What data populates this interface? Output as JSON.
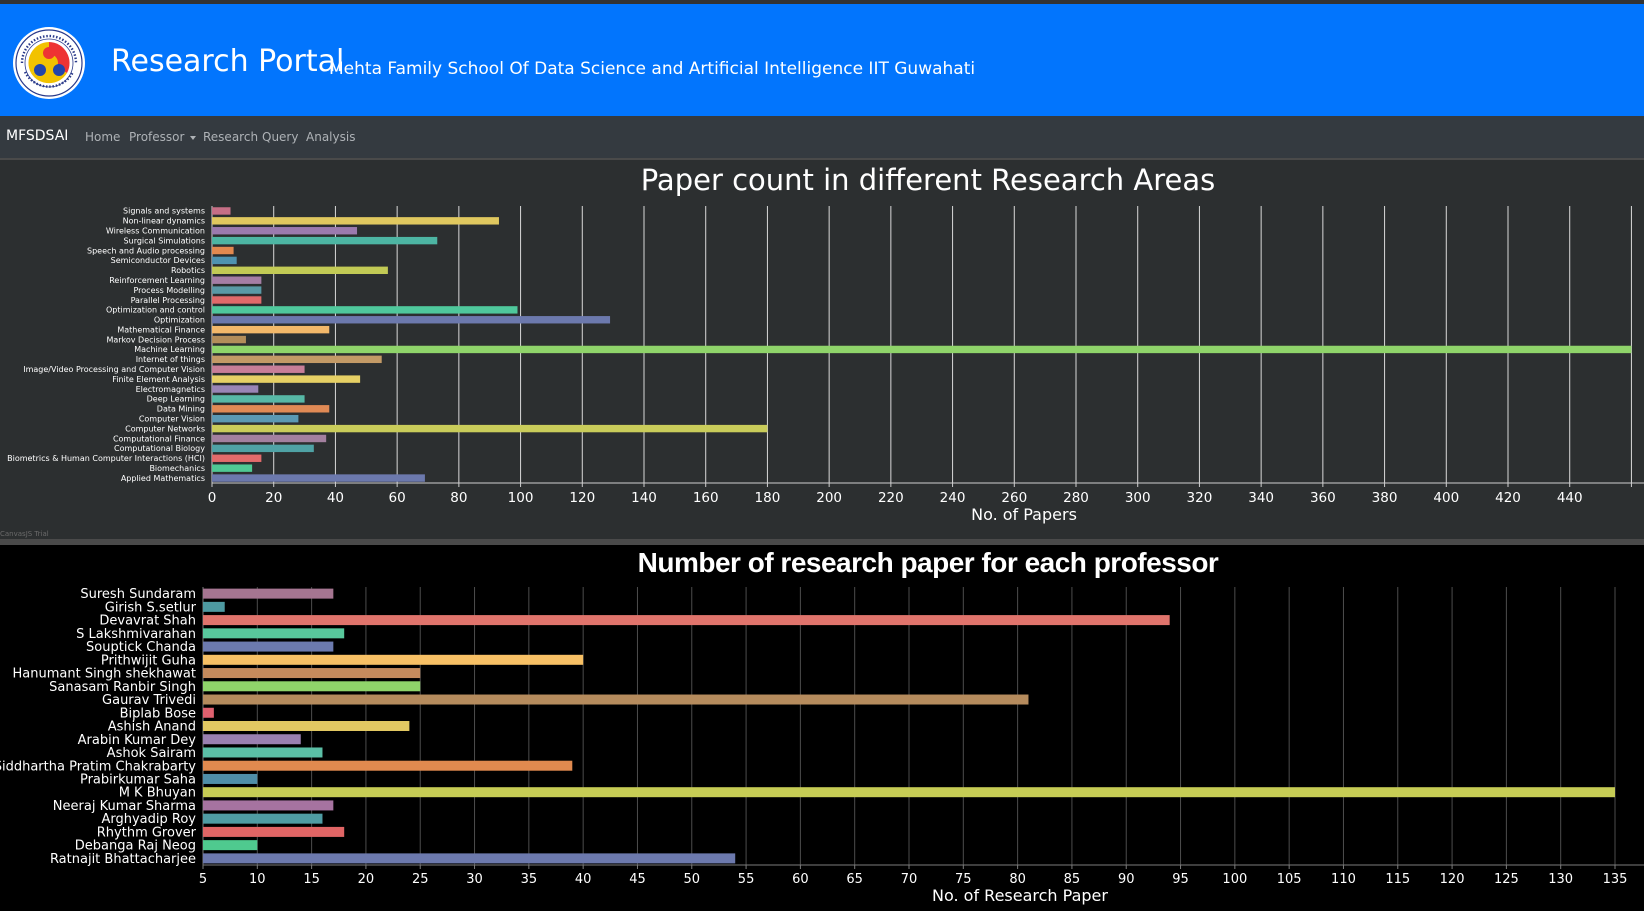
{
  "header": {
    "title": "Research Portal",
    "subtitle": "Mehta Family School Of Data Science and Artificial Intelligence IIT Guwahati",
    "background": "#0275fd"
  },
  "navbar": {
    "brand": "MFSDSAI",
    "links": [
      "Home",
      "Professor",
      "Research",
      "Query",
      "Analysis"
    ]
  },
  "charts": {
    "areas_trial_label": "CanvasJS Trial"
  },
  "chart_data": [
    {
      "type": "bar",
      "title": "Paper count in different Research Areas",
      "xlabel": "No. of Papers",
      "ylabel": "",
      "xlim": [
        0,
        460
      ],
      "tick_step": 20,
      "categories": [
        "Signals and systems",
        "Non-linear dynamics",
        "Wireless Communication",
        "Surgical Simulations",
        "Speech and Audio processing",
        "Semiconductor Devices",
        "Robotics",
        "Reinforcement Learning",
        "Process Modelling",
        "Parallel Processing",
        "Optimization and control",
        "Optimization",
        "Mathematical Finance",
        "Markov Decision Process",
        "Machine Learning",
        "Internet of things",
        "Image/Video Processing and Computer Vision",
        "Finite Element Analysis",
        "Electromagnetics",
        "Deep Learning",
        "Data Mining",
        "Computer Vision",
        "Computer Networks",
        "Computational Finance",
        "Computational Biology",
        "Biometrics & Human Computer Interactions (HCI)",
        "Biomechanics",
        "Applied Mathematics"
      ],
      "values": [
        6,
        93,
        47,
        73,
        7,
        8,
        57,
        16,
        16,
        16,
        99,
        129,
        38,
        11,
        460,
        55,
        30,
        48,
        15,
        30,
        38,
        28,
        180,
        37,
        33,
        16,
        13,
        69
      ],
      "colors": [
        "#c66f86",
        "#e0c85f",
        "#9b7aae",
        "#4db5a3",
        "#e2894f",
        "#4f93b0",
        "#c2ca55",
        "#a57ea5",
        "#599aa6",
        "#e06a6a",
        "#4fc89c",
        "#6c79ad",
        "#f3b86a",
        "#b38d5a",
        "#8fd46a",
        "#c39a66",
        "#c87e98",
        "#e6d065",
        "#9a85b5",
        "#57b8a6",
        "#e08a55",
        "#5b99b3",
        "#c9cc5a",
        "#a3809f",
        "#4fa2a5",
        "#e26b6b",
        "#4fc994",
        "#6c79ad"
      ],
      "grid": true
    },
    {
      "type": "bar",
      "title": "Number of research paper for each professor",
      "xlabel": "No. of Research Paper",
      "ylabel": "",
      "xlim": [
        5,
        135
      ],
      "tick_step": 5,
      "categories": [
        "Suresh Sundaram",
        "Girish S.setlur",
        "Devavrat Shah",
        "S Lakshmivarahan",
        "Souptick Chanda",
        "Prithwijit Guha",
        "Hanumant Singh shekhawat",
        "Sanasam Ranbir Singh",
        "Gaurav Trivedi",
        "Biplab Bose",
        "Ashish Anand",
        "Arabin Kumar Dey",
        "Ashok Sairam",
        "Siddhartha Pratim Chakrabarty",
        "Prabirkumar Saha",
        "M K Bhuyan",
        "Neeraj Kumar Sharma",
        "Arghyadip Roy",
        "Rhythm Grover",
        "Debanga Raj Neog",
        "Ratnajit Bhattacharjee"
      ],
      "values": [
        17,
        7,
        94,
        18,
        17,
        40,
        25,
        25,
        81,
        6,
        24,
        14,
        16,
        39,
        10,
        135,
        17,
        16,
        18,
        10,
        54
      ],
      "colors": [
        "#a57591",
        "#4e9aa1",
        "#e0746c",
        "#58c89c",
        "#6c7aae",
        "#f7c065",
        "#c58b5d",
        "#8fd46a",
        "#b58b5d",
        "#e0616f",
        "#e2c862",
        "#9a80b0",
        "#5bbfa6",
        "#e08a4f",
        "#4f8ea8",
        "#c6cc55",
        "#a673a0",
        "#4f9ca3",
        "#e06565",
        "#4fca8f",
        "#6c79ad"
      ],
      "grid": true
    }
  ]
}
